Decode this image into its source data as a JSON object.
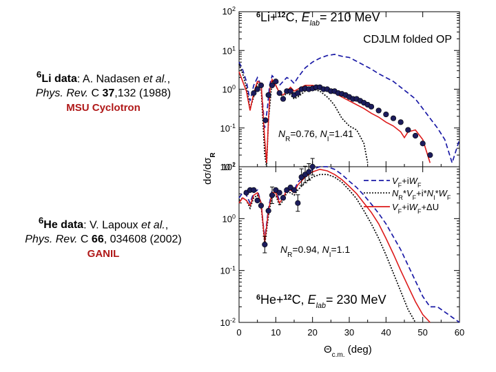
{
  "refs": {
    "li": {
      "nucleus_sup": "6",
      "nucleus": "Li",
      "data_word": "data",
      "authors": "A. Nadasen",
      "etal": "et al.",
      "journal": "Phys. Rev.",
      "series": "C",
      "volume": "37",
      "pages_year": ",132 (1988)",
      "lab": "MSU Cyclotron"
    },
    "he": {
      "nucleus_sup": "6",
      "nucleus": "He",
      "data_word": "data",
      "authors": "V. Lapoux",
      "etal": "et al.",
      "journal": "Phys. Rev.",
      "series": "C",
      "volume": "66",
      "pages_year": ", 034608 (2002)",
      "lab": "GANIL"
    }
  },
  "chart_data": {
    "type": "line",
    "ylabel": "dσ/dσR",
    "xlabel": "Θc.m. (deg)",
    "x_ticks": [
      0,
      10,
      20,
      30,
      40,
      50,
      60
    ],
    "xlim": [
      0,
      60
    ],
    "panels": [
      {
        "id": "top",
        "title": "6Li+12C, Elab= 210 MeV",
        "subtitle": "CDJLM folded OP",
        "annotation": "NR=0.76, NI=1.41",
        "y_log_range": [
          -2,
          2
        ],
        "y_ticks": [
          "10^2",
          "10^1",
          "10^0",
          "10^-1",
          "10^-2"
        ],
        "series": [
          {
            "name": "VF+iWF",
            "style": "dashed",
            "color": "#1a1aa6",
            "x": [
              0,
              1,
              2,
              3,
              4,
              5,
              6,
              7,
              7.7,
              8.3,
              9,
              10,
              11,
              12,
              13,
              14,
              15,
              16,
              18,
              20,
              22,
              24,
              26,
              28,
              30,
              32,
              34,
              36,
              38,
              40,
              42,
              44,
              46,
              48,
              50,
              52,
              54,
              56,
              58,
              60
            ],
            "y": [
              0.7,
              0.5,
              0.2,
              -0.3,
              0.1,
              0.3,
              0.1,
              -1.0,
              -0.5,
              0.1,
              0.35,
              0.25,
              0.1,
              0.2,
              0.3,
              0.25,
              0.15,
              0.3,
              0.55,
              0.7,
              0.8,
              0.87,
              0.9,
              0.85,
              0.82,
              0.72,
              0.62,
              0.52,
              0.4,
              0.3,
              0.2,
              0.05,
              -0.1,
              -0.25,
              -0.5,
              -0.75,
              -1.0,
              -1.3,
              -1.9,
              -1.3
            ]
          },
          {
            "name": "NR*VF+i*NI*WF",
            "style": "dotted",
            "color": "#000000",
            "x": [
              0,
              1,
              2,
              3,
              4,
              5,
              6,
              7,
              7.5,
              8,
              9,
              10,
              11,
              12,
              13,
              14,
              15,
              16,
              18,
              20,
              22,
              24,
              25,
              26,
              28,
              30,
              32,
              34,
              35
            ],
            "y": [
              0.65,
              0.4,
              0.05,
              -0.5,
              -0.2,
              0.15,
              0.05,
              -1.7,
              -2.0,
              -0.8,
              0.2,
              0.1,
              -0.1,
              -0.2,
              -0.1,
              -0.15,
              -0.25,
              -0.2,
              -0.05,
              0.0,
              -0.05,
              -0.2,
              -0.3,
              -0.42,
              -0.75,
              -0.95,
              -1.05,
              -1.4,
              -1.9
            ]
          },
          {
            "name": "VF+iWF+ΔU",
            "style": "solid",
            "color": "#dd1a1a",
            "x": [
              0,
              1,
              2,
              3,
              4,
              5,
              6,
              7,
              7.5,
              8,
              8.5,
              9,
              10,
              11,
              12,
              13,
              14,
              15,
              16,
              18,
              20,
              22,
              24,
              26,
              28,
              30,
              32,
              34,
              36,
              38,
              40,
              42,
              44,
              45,
              46,
              48,
              50,
              52
            ],
            "y": [
              0.45,
              0.2,
              -0.05,
              -0.55,
              -0.1,
              0.2,
              0.15,
              -1.3,
              -1.9,
              -0.8,
              0.1,
              0.25,
              0.1,
              -0.1,
              -0.15,
              -0.05,
              0.05,
              -0.05,
              0.0,
              0.1,
              0.1,
              0.05,
              -0.02,
              -0.1,
              -0.2,
              -0.3,
              -0.4,
              -0.5,
              -0.62,
              -0.72,
              -0.85,
              -0.95,
              -1.1,
              -1.25,
              -1.1,
              -1.05,
              -1.3,
              -1.9
            ]
          }
        ],
        "points": {
          "x": [
            4,
            5,
            6,
            7.2,
            8,
            9,
            10,
            11,
            12,
            13,
            14,
            15,
            16,
            17,
            18,
            19,
            20,
            21,
            22,
            23,
            24,
            25,
            26,
            27,
            28,
            29,
            30,
            31,
            32,
            33,
            34,
            35,
            36,
            38,
            40,
            42,
            44,
            46,
            48,
            50,
            52
          ],
          "y": [
            -0.1,
            0.0,
            0.1,
            -0.8,
            -0.15,
            0.1,
            0.2,
            -0.1,
            -0.25,
            -0.05,
            -0.05,
            -0.15,
            -0.1,
            0.0,
            0.02,
            0.0,
            0.02,
            0.05,
            0.05,
            0.0,
            0.0,
            -0.05,
            -0.05,
            -0.1,
            -0.12,
            -0.15,
            -0.2,
            -0.25,
            -0.25,
            -0.3,
            -0.35,
            -0.4,
            -0.45,
            -0.55,
            -0.65,
            -0.75,
            -0.85,
            -1.05,
            -1.2,
            -1.4,
            -1.7
          ]
        }
      },
      {
        "id": "bottom",
        "title": "6He+12C, Elab= 230 MeV",
        "annotation": "NR=0.94, NI=1.1",
        "y_log_range": [
          -2,
          1
        ],
        "y_ticks": [
          "10^1",
          "10^0",
          "10^-1",
          "10^-2"
        ],
        "series": [
          {
            "name": "VF+iWF",
            "style": "dashed",
            "color": "#1a1aa6",
            "x": [
              0,
              1,
              2,
              3,
              4,
              5,
              6,
              7,
              8,
              9,
              10,
              11,
              12,
              13,
              14,
              15,
              16,
              18,
              20,
              22,
              24,
              26,
              28,
              30,
              32,
              34,
              36,
              38,
              40,
              42,
              44,
              46,
              48,
              50,
              52,
              54,
              56,
              58,
              60
            ],
            "y": [
              0.4,
              0.5,
              0.45,
              0.3,
              0.5,
              0.55,
              0.3,
              -0.4,
              0.2,
              0.55,
              0.55,
              0.35,
              0.45,
              0.6,
              0.6,
              0.55,
              0.7,
              0.85,
              0.95,
              1.0,
              1.0,
              0.95,
              0.85,
              0.72,
              0.6,
              0.45,
              0.28,
              0.1,
              -0.1,
              -0.35,
              -0.6,
              -0.9,
              -1.2,
              -1.5,
              -1.7,
              -1.7,
              -1.8,
              -1.9,
              -2.0
            ]
          },
          {
            "name": "NR*VF+i*NI*WF",
            "style": "dotted",
            "color": "#000000",
            "x": [
              0,
              1,
              2,
              3,
              4,
              5,
              6,
              7,
              8,
              9,
              10,
              11,
              12,
              13,
              14,
              15,
              16,
              18,
              20,
              22,
              24,
              26,
              28,
              30,
              32,
              34,
              36,
              38,
              40,
              42,
              44,
              46,
              48
            ],
            "y": [
              0.35,
              0.4,
              0.35,
              0.2,
              0.4,
              0.45,
              0.25,
              -0.5,
              0.05,
              0.45,
              0.45,
              0.25,
              0.35,
              0.5,
              0.5,
              0.45,
              0.55,
              0.7,
              0.8,
              0.85,
              0.85,
              0.8,
              0.7,
              0.55,
              0.38,
              0.15,
              -0.1,
              -0.38,
              -0.7,
              -1.05,
              -1.4,
              -1.75,
              -2.0
            ]
          },
          {
            "name": "VF+iWF+ΔU",
            "style": "solid",
            "color": "#dd1a1a",
            "x": [
              0,
              1,
              2,
              3,
              4,
              5,
              6,
              7,
              8,
              9,
              10,
              11,
              12,
              13,
              14,
              15,
              16,
              18,
              20,
              22,
              24,
              26,
              28,
              30,
              32,
              34,
              36,
              38,
              40,
              42,
              44,
              46,
              48,
              50,
              52
            ],
            "y": [
              0.3,
              0.4,
              0.35,
              0.25,
              0.45,
              0.5,
              0.3,
              -0.45,
              0.15,
              0.5,
              0.5,
              0.3,
              0.4,
              0.55,
              0.55,
              0.5,
              0.65,
              0.8,
              0.9,
              0.95,
              0.92,
              0.85,
              0.75,
              0.62,
              0.48,
              0.3,
              0.12,
              -0.1,
              -0.38,
              -0.68,
              -1.0,
              -1.3,
              -1.6,
              -1.85,
              -2.0
            ]
          }
        ],
        "points": {
          "x": [
            2,
            3,
            4,
            5,
            6,
            7,
            8,
            9,
            10,
            11,
            12,
            13,
            14,
            15,
            16,
            17,
            18,
            19,
            20
          ],
          "y": [
            0.5,
            0.55,
            0.55,
            0.35,
            0.25,
            -0.5,
            0.15,
            0.45,
            0.55,
            0.5,
            0.4,
            0.55,
            0.6,
            0.55,
            0.3,
            0.8,
            0.85,
            0.9,
            1.0
          ]
        }
      }
    ],
    "legend": [
      "VF+iWF",
      "NR*VF+i*NI*WF",
      "VF+iWF+ΔU"
    ]
  }
}
